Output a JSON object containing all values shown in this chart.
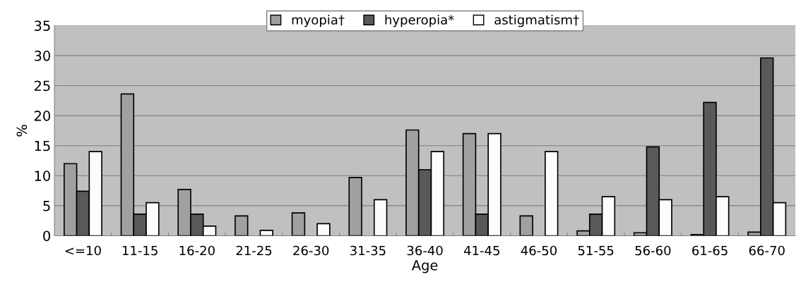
{
  "chart_data": {
    "type": "bar",
    "xlabel": "Age",
    "ylabel": "%",
    "categories": [
      "<=10",
      "11-15",
      "16-20",
      "21-25",
      "26-30",
      "31-35",
      "36-40",
      "41-45",
      "46-50",
      "51-55",
      "56-60",
      "61-65",
      "66-70"
    ],
    "series": [
      {
        "name": "myopia†",
        "color": "#a0a0a0",
        "values": [
          12,
          23.6,
          7.7,
          3.3,
          3.8,
          9.7,
          17.6,
          17,
          3.3,
          0.8,
          0.5,
          0.2,
          0.6
        ]
      },
      {
        "name": "hyperopia*",
        "color": "#595959",
        "values": [
          7.4,
          3.6,
          3.6,
          null,
          null,
          null,
          11,
          3.6,
          null,
          3.6,
          14.8,
          22.2,
          29.6
        ]
      },
      {
        "name": "astigmatism†",
        "color": "#fcfcfc",
        "values": [
          14,
          5.5,
          1.6,
          0.9,
          2,
          6,
          14,
          17,
          14,
          6.5,
          6,
          6.5,
          5.5
        ]
      }
    ],
    "ylim": [
      0,
      35
    ],
    "yticks": [
      0,
      5,
      10,
      15,
      20,
      25,
      30,
      35
    ],
    "grid": "y",
    "legend": "top"
  }
}
